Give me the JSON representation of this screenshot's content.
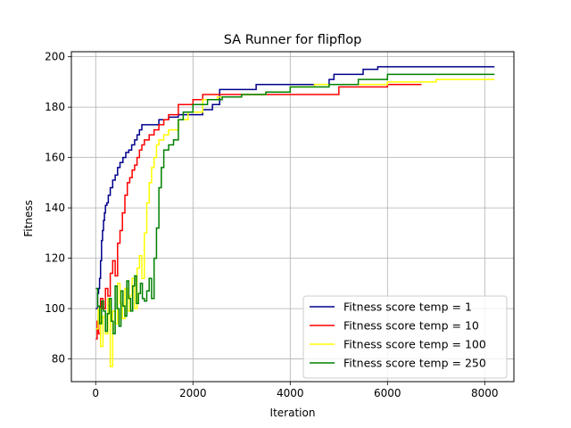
{
  "chart_data": {
    "type": "line",
    "title": "SA Runner for flipflop",
    "xlabel": "Iteration",
    "ylabel": "Fitness",
    "xlim": [
      -500,
      8600
    ],
    "ylim": [
      71,
      202
    ],
    "xticks": [
      0,
      2000,
      4000,
      6000,
      8000
    ],
    "yticks": [
      80,
      100,
      120,
      140,
      160,
      180,
      200
    ],
    "grid": true,
    "legend_position": "lower-right",
    "series": [
      {
        "name": "Fitness score temp = 1",
        "color": "#00008b",
        "x": [
          0,
          40,
          60,
          80,
          100,
          120,
          140,
          160,
          180,
          200,
          230,
          260,
          300,
          350,
          400,
          450,
          500,
          560,
          620,
          680,
          740,
          800,
          850,
          900,
          950,
          1000,
          1100,
          1200,
          1300,
          1400,
          1500,
          1700,
          2000,
          2200,
          2400,
          2550,
          2800,
          3000,
          3300,
          3700,
          4200,
          4800,
          4900,
          5500,
          5800,
          6400,
          7000,
          8200
        ],
        "y": [
          100,
          106,
          108,
          112,
          119,
          127,
          131,
          135,
          138,
          141,
          142,
          145,
          148,
          151,
          153,
          156,
          158,
          160,
          162,
          163,
          165,
          167,
          169,
          171,
          173,
          173,
          173,
          173,
          175,
          175,
          176,
          177,
          177,
          179,
          181,
          187,
          187,
          187,
          189,
          189,
          189,
          191,
          193,
          195,
          196,
          196,
          196,
          196
        ]
      },
      {
        "name": "Fitness score temp = 10",
        "color": "#ff0000",
        "x": [
          0,
          30,
          60,
          100,
          150,
          200,
          250,
          300,
          350,
          400,
          450,
          500,
          550,
          600,
          650,
          700,
          750,
          800,
          850,
          900,
          950,
          1000,
          1100,
          1200,
          1300,
          1400,
          1500,
          1700,
          2000,
          2200,
          2500,
          3000,
          3500,
          4000,
          5000,
          6000,
          6700
        ],
        "y": [
          88,
          95,
          90,
          104,
          100,
          108,
          105,
          114,
          119,
          113,
          126,
          131,
          138,
          145,
          150,
          152,
          155,
          157,
          160,
          163,
          165,
          167,
          169,
          171,
          173,
          175,
          177,
          181,
          183,
          185,
          185,
          185,
          185,
          185,
          188,
          189,
          189
        ]
      },
      {
        "name": "Fitness score temp = 100",
        "color": "#ffff00",
        "x": [
          0,
          50,
          100,
          150,
          200,
          250,
          300,
          350,
          400,
          450,
          500,
          550,
          600,
          650,
          700,
          750,
          800,
          850,
          900,
          950,
          1000,
          1050,
          1100,
          1150,
          1200,
          1250,
          1300,
          1400,
          1500,
          1700,
          1900,
          2200,
          2500,
          3000,
          3500,
          4000,
          4500,
          5000,
          6000,
          7000,
          8200
        ],
        "y": [
          92,
          100,
          85,
          97,
          90,
          104,
          77,
          99,
          94,
          110,
          102,
          96,
          108,
          99,
          105,
          112,
          100,
          116,
          121,
          112,
          130,
          142,
          150,
          156,
          160,
          165,
          167,
          169,
          171,
          175,
          178,
          183,
          184,
          185,
          186,
          188,
          189,
          189,
          190,
          191,
          191
        ]
      },
      {
        "name": "Fitness score temp = 250",
        "color": "#008000",
        "x": [
          0,
          40,
          80,
          120,
          160,
          200,
          240,
          280,
          320,
          360,
          400,
          440,
          480,
          520,
          560,
          600,
          640,
          680,
          720,
          760,
          800,
          840,
          880,
          920,
          960,
          1000,
          1050,
          1100,
          1150,
          1200,
          1250,
          1300,
          1350,
          1400,
          1500,
          1600,
          1700,
          1800,
          2000,
          2300,
          2600,
          3000,
          3500,
          4000,
          4800,
          5400,
          6000,
          7000,
          8200
        ],
        "y": [
          108,
          101,
          94,
          103,
          99,
          91,
          98,
          104,
          95,
          90,
          109,
          100,
          93,
          107,
          101,
          97,
          111,
          104,
          99,
          109,
          113,
          102,
          106,
          110,
          104,
          103,
          107,
          112,
          104,
          120,
          132,
          148,
          156,
          163,
          165,
          167,
          175,
          178,
          181,
          183,
          184,
          185,
          186,
          188,
          189,
          191,
          193,
          193,
          193
        ]
      }
    ]
  }
}
